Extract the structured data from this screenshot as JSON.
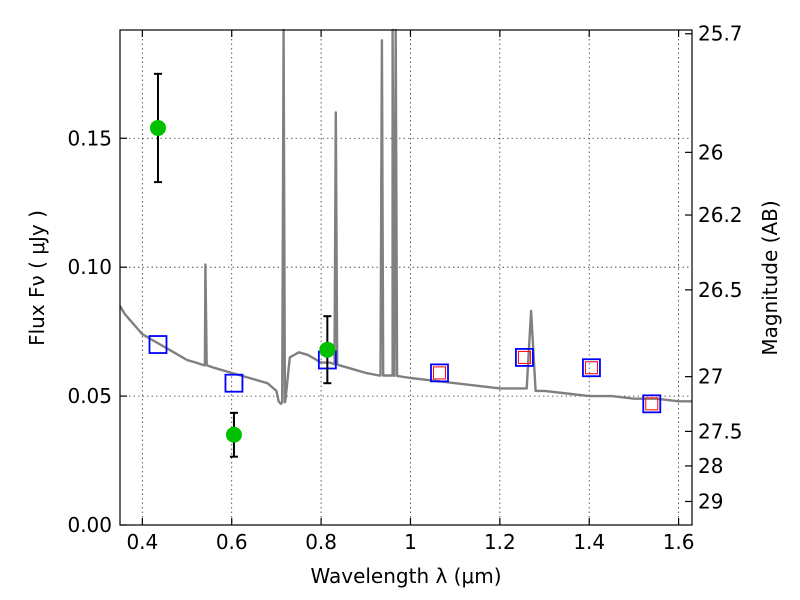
{
  "chart_data": {
    "type": "scatter",
    "xlabel": "Wavelength  λ (μm)",
    "ylabel": "Flux  Fν  ( μJy )",
    "y2label": "Magnitude (AB)",
    "xlim": [
      0.35,
      1.63
    ],
    "ylim": [
      0.0,
      0.192
    ],
    "x_ticks": [
      0.4,
      0.6,
      0.8,
      1.0,
      1.2,
      1.4,
      1.6
    ],
    "x_tick_labels": [
      "0.4",
      "0.6",
      "0.8",
      "1",
      "1.2",
      "1.4",
      "1.6"
    ],
    "y_ticks": [
      0.0,
      0.05,
      0.1,
      0.15
    ],
    "y_tick_labels": [
      "0.00",
      "0.05",
      "0.10",
      "0.15"
    ],
    "y2_ticks": [
      25.7,
      26,
      26.2,
      26.5,
      27,
      27.5,
      28,
      29
    ],
    "y2_tick_labels": [
      "25.7",
      "26",
      "26.2",
      "26.5",
      "27",
      "27.5",
      "28",
      "29"
    ],
    "grid": true,
    "colors": {
      "model": "#808080",
      "observed": "#00c000",
      "errorbar": "#000000",
      "model_photometry": "#0000ff",
      "synthetic_photometry": "#ff0000"
    },
    "model_spectrum": {
      "x": [
        0.35,
        0.36,
        0.37,
        0.38,
        0.39,
        0.4,
        0.42,
        0.44,
        0.46,
        0.48,
        0.5,
        0.52,
        0.54,
        0.56,
        0.58,
        0.6,
        0.62,
        0.64,
        0.66,
        0.68,
        0.7,
        0.705,
        0.71,
        0.72,
        0.73,
        0.75,
        0.77,
        0.79,
        0.8,
        0.82,
        0.84,
        0.86,
        0.88,
        0.9,
        0.93,
        0.96,
        1.0,
        1.05,
        1.1,
        1.15,
        1.2,
        1.24,
        1.26,
        1.27,
        1.28,
        1.3,
        1.35,
        1.4,
        1.45,
        1.5,
        1.55,
        1.6,
        1.63
      ],
      "y": [
        0.085,
        0.082,
        0.08,
        0.078,
        0.076,
        0.074,
        0.072,
        0.07,
        0.068,
        0.066,
        0.064,
        0.063,
        0.062,
        0.061,
        0.06,
        0.059,
        0.058,
        0.057,
        0.056,
        0.055,
        0.052,
        0.048,
        0.047,
        0.048,
        0.065,
        0.067,
        0.066,
        0.064,
        0.063,
        0.063,
        0.062,
        0.061,
        0.06,
        0.059,
        0.058,
        0.058,
        0.057,
        0.056,
        0.055,
        0.054,
        0.053,
        0.053,
        0.053,
        0.083,
        0.052,
        0.052,
        0.051,
        0.05,
        0.05,
        0.049,
        0.049,
        0.048,
        0.048
      ],
      "emission_lines": [
        {
          "x": 0.541,
          "peak": 0.101
        },
        {
          "x": 0.716,
          "peak": 0.192
        },
        {
          "x": 0.833,
          "peak": 0.16
        },
        {
          "x": 0.936,
          "peak": 0.188
        },
        {
          "x": 0.96,
          "peak": 0.192
        },
        {
          "x": 0.967,
          "peak": 0.192
        }
      ]
    },
    "observed_points": [
      {
        "x": 0.435,
        "y": 0.154,
        "yerr": 0.021
      },
      {
        "x": 0.605,
        "y": 0.035,
        "yerr": 0.0085
      },
      {
        "x": 0.814,
        "y": 0.068,
        "yerr": 0.013
      }
    ],
    "model_photometry": [
      {
        "x": 0.435,
        "y": 0.07
      },
      {
        "x": 0.605,
        "y": 0.055
      },
      {
        "x": 0.814,
        "y": 0.064
      },
      {
        "x": 1.065,
        "y": 0.059
      },
      {
        "x": 1.255,
        "y": 0.065
      },
      {
        "x": 1.405,
        "y": 0.061
      },
      {
        "x": 1.54,
        "y": 0.047
      }
    ],
    "synthetic_photometry": [
      {
        "x": 1.065,
        "y": 0.059
      },
      {
        "x": 1.255,
        "y": 0.065
      },
      {
        "x": 1.405,
        "y": 0.061
      },
      {
        "x": 1.54,
        "y": 0.047
      }
    ]
  }
}
